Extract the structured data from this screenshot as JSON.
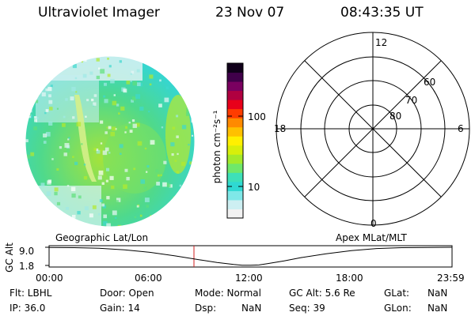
{
  "header": {
    "title": "Ultraviolet Imager",
    "date": "23 Nov 07",
    "time": "08:43:35 UT"
  },
  "colorbar": {
    "label": "photon cm⁻²s⁻¹",
    "scale": "log",
    "ticks": [
      {
        "value": 100,
        "label": "100"
      },
      {
        "value": 10,
        "label": "10"
      }
    ],
    "colors": [
      "#f2f2f2",
      "#cdeff2",
      "#7fe8e8",
      "#2fd9d2",
      "#3ee0b8",
      "#6fe86a",
      "#a4ea2a",
      "#d8ef0a",
      "#fff000",
      "#ffc000",
      "#ff8a00",
      "#ff3c00",
      "#e8001a",
      "#b00040",
      "#7a0060",
      "#40004a",
      "#10001a"
    ]
  },
  "polar_plot": {
    "lat_labels": [
      "60",
      "70",
      "80"
    ],
    "mlt_labels": {
      "top": "12",
      "left": "18",
      "right": "6",
      "bottom": "0"
    }
  },
  "strip_chart": {
    "left_title": "Geographic Lat/Lon",
    "right_title": "Apex MLat/MLT",
    "ylabel": "GC Alt",
    "ytick_top": "9.0",
    "ytick_bottom": "1.8",
    "xticks": [
      "00:00",
      "06:00",
      "12:00",
      "18:00",
      "23:59"
    ],
    "marker_color": "#d02020"
  },
  "chart_data": {
    "type": "line",
    "title": "",
    "xlabel": "",
    "ylabel": "GC Alt",
    "x_unit": "UT hours",
    "xlim": [
      0,
      24
    ],
    "ylim": [
      1.8,
      9.0
    ],
    "x": [
      0,
      1.5,
      3,
      4.5,
      6,
      7.5,
      9,
      10,
      11,
      11.5,
      12,
      12.5,
      13,
      14,
      15,
      16.5,
      18,
      19.5,
      21,
      22.5,
      24
    ],
    "series": [
      {
        "values": [
          8.9,
          8.85,
          8.6,
          8.0,
          7.0,
          5.6,
          4.0,
          3.0,
          2.2,
          1.9,
          1.85,
          2.0,
          2.5,
          3.6,
          4.9,
          6.4,
          7.7,
          8.5,
          8.85,
          8.95,
          9.0
        ]
      }
    ],
    "marker_time": "08:43:35"
  },
  "info": {
    "flt": "Flt: LBHL",
    "ip": "IP: 36.0",
    "door": "Door: Open",
    "gain": "Gain: 14",
    "mode": "Mode: Normal",
    "dsp": "Dsp:",
    "dsp_val": "NaN",
    "gcalt": "GC Alt: 5.6 Re",
    "seq": "Seq: 39",
    "glat": "GLat:",
    "glat_val": "NaN",
    "glon": "GLon:",
    "glon_val": "NaN"
  }
}
